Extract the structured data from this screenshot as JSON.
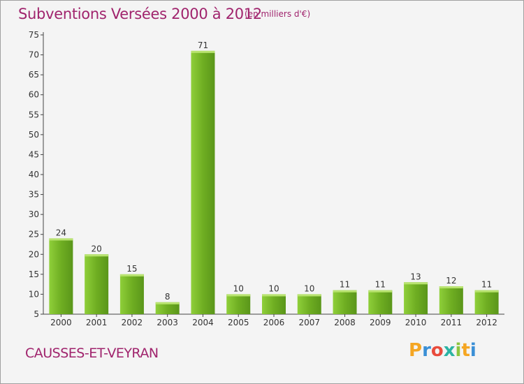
{
  "header": {
    "title": "Subventions Versées 2000 à 2012",
    "subtitle": "(en milliers d'€)"
  },
  "footer": {
    "commune": "CAUSSES-ET-VEYRAN",
    "logo": [
      "P",
      "r",
      "o",
      "x",
      "i",
      "t",
      "i"
    ],
    "logo_colors": [
      "#f5a623",
      "#3a8fd6",
      "#e94b3c",
      "#2bb3a3",
      "#8cc63f",
      "#f5a623",
      "#3a8fd6"
    ]
  },
  "chart_data": {
    "type": "bar",
    "title": "Subventions Versées 2000 à 2012",
    "subtitle": "(en milliers d'€)",
    "categories": [
      "2000",
      "2001",
      "2002",
      "2003",
      "2004",
      "2005",
      "2006",
      "2007",
      "2008",
      "2009",
      "2010",
      "2011",
      "2012"
    ],
    "values": [
      24,
      20,
      15,
      8,
      71,
      10,
      10,
      10,
      11,
      11,
      13,
      12,
      11
    ],
    "ylim": [
      5,
      75
    ],
    "yticks": [
      5,
      10,
      15,
      20,
      25,
      30,
      35,
      40,
      45,
      50,
      55,
      60,
      65,
      70,
      75
    ],
    "grid": false,
    "bar_color": "#7cbf2e",
    "bar_color_light": "#a6d94f",
    "bar_color_dark": "#5e9e1c"
  }
}
